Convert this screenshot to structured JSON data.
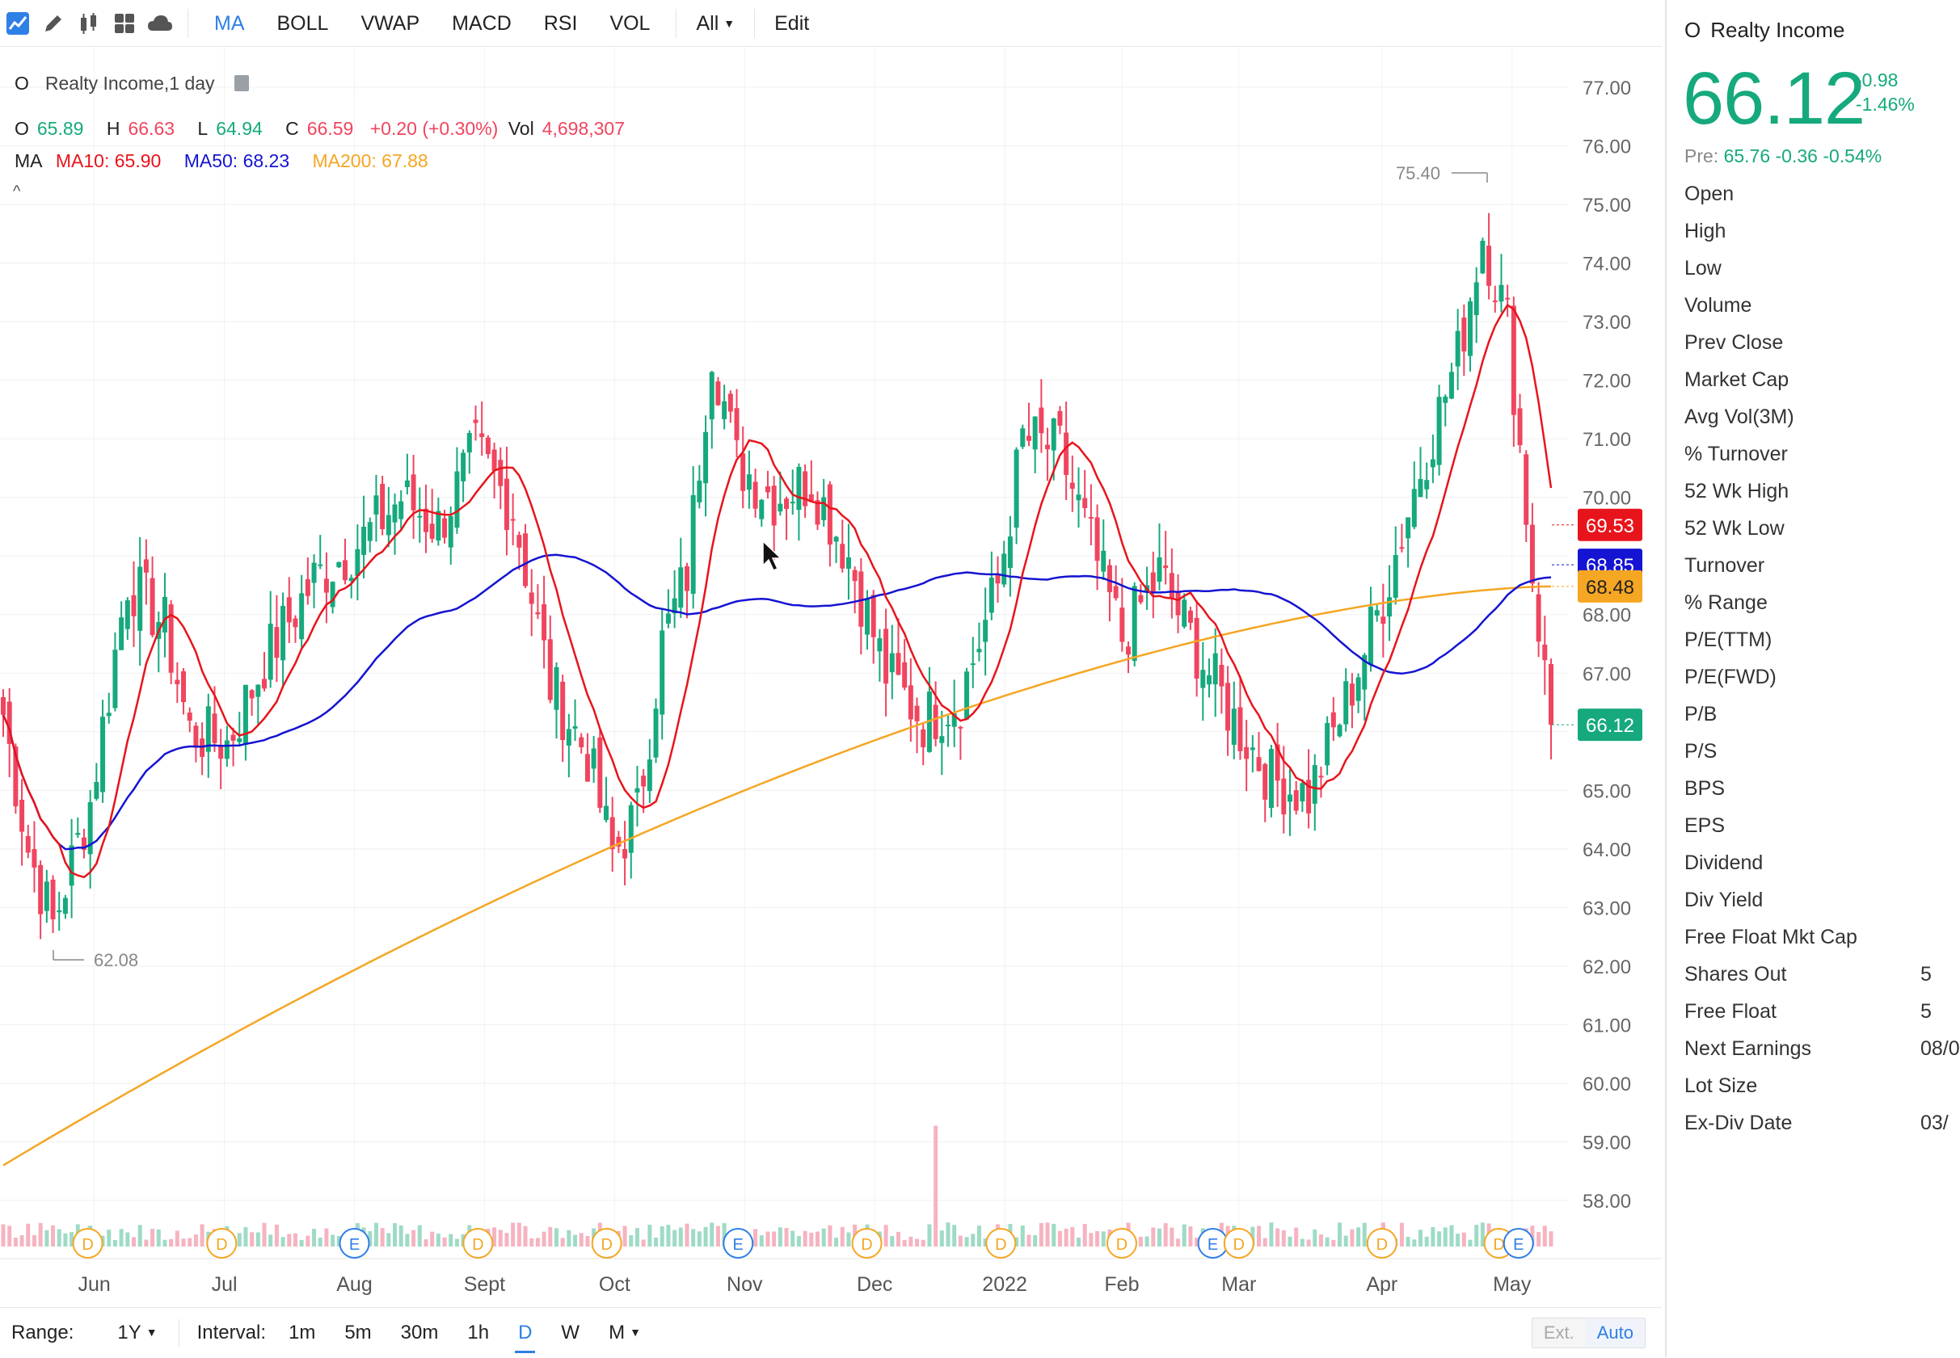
{
  "toolbar": {
    "icons": [
      "line-chart-icon",
      "pencil-icon",
      "candles-icon",
      "grid-icon",
      "cloud-icon"
    ],
    "indicators": [
      {
        "label": "MA",
        "active": true
      },
      {
        "label": "BOLL",
        "active": false
      },
      {
        "label": "VWAP",
        "active": false
      },
      {
        "label": "MACD",
        "active": false
      },
      {
        "label": "RSI",
        "active": false
      },
      {
        "label": "VOL",
        "active": false
      }
    ],
    "all_label": "All",
    "edit_label": "Edit"
  },
  "legend": {
    "symbol": "O",
    "title": "Realty Income,1 day",
    "ohlc": {
      "o_label": "O",
      "o_value": "65.89",
      "h_label": "H",
      "h_value": "66.63",
      "l_label": "L",
      "l_value": "64.94",
      "c_label": "C",
      "c_value": "66.59",
      "change": "+0.20 (+0.30%)",
      "vol_label": "Vol",
      "vol_value": "4,698,307"
    },
    "ma": {
      "label": "MA",
      "ma10": "MA10: 65.90",
      "ma50": "MA50: 68.23",
      "ma200": "MA200: 67.88"
    },
    "colors": {
      "up": "#16a97d",
      "down": "#f0455f",
      "ma10": "#e8141b",
      "ma50": "#1414d2",
      "ma200": "#f5a623"
    }
  },
  "chart_data": {
    "type": "candlestick",
    "interval": "1 day",
    "ylim": [
      57.0,
      77.6
    ],
    "y_ticks": [
      "77.00",
      "76.00",
      "75.00",
      "74.00",
      "73.00",
      "72.00",
      "71.00",
      "70.00",
      "69.00",
      "68.00",
      "67.00",
      "66.00",
      "65.00",
      "64.00",
      "63.00",
      "62.00",
      "61.00",
      "60.00",
      "59.00",
      "58.00"
    ],
    "x_labels": [
      "Jun",
      "Jul",
      "Aug",
      "Sept",
      "Oct",
      "Nov",
      "Dec",
      "2022",
      "Feb",
      "Mar",
      "Apr",
      "May"
    ],
    "x_label_positions_month_index": [
      0.7,
      1.7,
      2.7,
      3.7,
      4.7,
      5.7,
      6.7,
      7.7,
      8.6,
      9.5,
      10.6,
      11.6
    ],
    "close_series_anchors": [
      [
        0,
        66.3
      ],
      [
        4,
        64.0
      ],
      [
        8,
        62.7
      ],
      [
        14,
        64.8
      ],
      [
        20,
        68.6
      ],
      [
        26,
        67.8
      ],
      [
        30,
        66.0
      ],
      [
        36,
        65.8
      ],
      [
        42,
        67.2
      ],
      [
        50,
        68.6
      ],
      [
        58,
        69.3
      ],
      [
        64,
        70.0
      ],
      [
        70,
        69.5
      ],
      [
        76,
        70.8
      ],
      [
        82,
        69.8
      ],
      [
        88,
        66.8
      ],
      [
        94,
        65.6
      ],
      [
        98,
        63.9
      ],
      [
        102,
        64.6
      ],
      [
        106,
        67.5
      ],
      [
        110,
        68.7
      ],
      [
        114,
        72.6
      ],
      [
        118,
        70.6
      ],
      [
        124,
        70.0
      ],
      [
        130,
        70.3
      ],
      [
        136,
        69.0
      ],
      [
        142,
        67.0
      ],
      [
        148,
        66.2
      ],
      [
        154,
        66.6
      ],
      [
        160,
        68.5
      ],
      [
        164,
        71.0
      ],
      [
        170,
        70.8
      ],
      [
        174,
        69.5
      ],
      [
        180,
        67.6
      ],
      [
        186,
        68.7
      ],
      [
        192,
        67.4
      ],
      [
        198,
        66.2
      ],
      [
        204,
        65.2
      ],
      [
        210,
        64.9
      ],
      [
        216,
        66.5
      ],
      [
        222,
        68.3
      ],
      [
        228,
        70.5
      ],
      [
        234,
        72.4
      ],
      [
        238,
        74.5
      ],
      [
        242,
        73.0
      ],
      [
        246,
        68.7
      ],
      [
        249,
        66.1
      ]
    ],
    "ma10_last": 69.53,
    "ma50_last": 68.85,
    "ma200_last": 68.48,
    "ma200_start": 58.6,
    "last_price": 66.12,
    "high_marker": {
      "label": "75.40",
      "value": 75.4
    },
    "low_marker": {
      "label": "62.08",
      "value": 62.08
    },
    "price_tags": [
      {
        "text": "69.53",
        "value": 69.53,
        "color": "#e8141b",
        "text_color": "#ffffff"
      },
      {
        "text": "68.85",
        "value": 68.85,
        "color": "#1414d2",
        "text_color": "#ffffff"
      },
      {
        "text": "68.48",
        "value": 68.48,
        "color": "#f5a623",
        "text_color": "#222222"
      },
      {
        "text": "66.12",
        "value": 66.12,
        "color": "#16a97d",
        "text_color": "#ffffff"
      }
    ],
    "events": [
      {
        "type": "D",
        "month_pos": 0.65
      },
      {
        "type": "D",
        "month_pos": 1.68
      },
      {
        "type": "E",
        "month_pos": 2.7
      },
      {
        "type": "D",
        "month_pos": 3.65
      },
      {
        "type": "D",
        "month_pos": 4.64
      },
      {
        "type": "E",
        "month_pos": 5.65
      },
      {
        "type": "D",
        "month_pos": 6.64
      },
      {
        "type": "D",
        "month_pos": 7.67
      },
      {
        "type": "D",
        "month_pos": 8.6
      },
      {
        "type": "E",
        "month_pos": 9.3
      },
      {
        "type": "D",
        "month_pos": 9.5
      },
      {
        "type": "D",
        "month_pos": 10.6
      },
      {
        "type": "D",
        "month_pos": 11.5
      },
      {
        "type": "E",
        "month_pos": 11.65
      }
    ]
  },
  "bottombar": {
    "range_label": "Range:",
    "range_value": "1Y",
    "interval_label": "Interval:",
    "intervals": [
      {
        "label": "1m",
        "active": false
      },
      {
        "label": "5m",
        "active": false
      },
      {
        "label": "30m",
        "active": false
      },
      {
        "label": "1h",
        "active": false
      },
      {
        "label": "D",
        "active": true
      },
      {
        "label": "W",
        "active": false
      }
    ],
    "month_label": "M",
    "ext_label": "Ext.",
    "auto_label": "Auto"
  },
  "panel": {
    "symbol": "O",
    "name": "Realty Income",
    "price": "66.12",
    "change": "-0.98",
    "change_pct": "-1.46%",
    "pre_label": "Pre:",
    "pre_value": "65.76 -0.36 -0.54%",
    "stats": [
      {
        "label": "Open",
        "value": ""
      },
      {
        "label": "High",
        "value": ""
      },
      {
        "label": "Low",
        "value": ""
      },
      {
        "label": "Volume",
        "value": ""
      },
      {
        "label": "Prev Close",
        "value": ""
      },
      {
        "label": "Market Cap",
        "value": ""
      },
      {
        "label": "Avg Vol(3M)",
        "value": ""
      },
      {
        "label": "% Turnover",
        "value": ""
      },
      {
        "label": "52 Wk High",
        "value": ""
      },
      {
        "label": "52 Wk Low",
        "value": ""
      },
      {
        "label": "Turnover",
        "value": ""
      },
      {
        "label": "% Range",
        "value": ""
      },
      {
        "label": "P/E(TTM)",
        "value": ""
      },
      {
        "label": "P/E(FWD)",
        "value": ""
      },
      {
        "label": "P/B",
        "value": ""
      },
      {
        "label": "P/S",
        "value": ""
      },
      {
        "label": "BPS",
        "value": ""
      },
      {
        "label": "EPS",
        "value": ""
      },
      {
        "label": "Dividend",
        "value": ""
      },
      {
        "label": "Div Yield",
        "value": ""
      },
      {
        "label": "Free Float Mkt Cap",
        "value": ""
      },
      {
        "label": "Shares Out",
        "value": "5"
      },
      {
        "label": "Free Float",
        "value": "5"
      },
      {
        "label": "Next Earnings",
        "value": "08/0"
      },
      {
        "label": "Lot Size",
        "value": ""
      },
      {
        "label": "Ex-Div Date",
        "value": "03/"
      }
    ]
  }
}
